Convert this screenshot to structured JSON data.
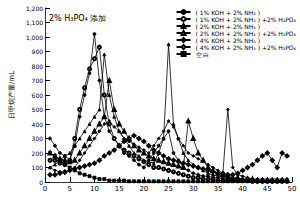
{
  "chart_data": {
    "type": "line",
    "title": "2% H₃PO₄ 添加",
    "y_label": "日甲烷产量/mL",
    "x": [
      1,
      2,
      3,
      4,
      5,
      6,
      7,
      8,
      9,
      10,
      11,
      12,
      13,
      14,
      15,
      16,
      17,
      18,
      19,
      20,
      21,
      22,
      23,
      24,
      25,
      26,
      27,
      28,
      29,
      30,
      31,
      32,
      33,
      34,
      35,
      36,
      37,
      38,
      39,
      40,
      41,
      42,
      43,
      44,
      45,
      46,
      47,
      48,
      49
    ],
    "xlim": [
      0,
      50
    ],
    "xticks": [
      0,
      5,
      10,
      15,
      20,
      25,
      30,
      35,
      40,
      45,
      50
    ],
    "ylim": [
      0,
      1200
    ],
    "yticks": [
      0,
      100,
      200,
      300,
      400,
      500,
      600,
      700,
      800,
      900,
      1000,
      1100,
      1200
    ],
    "grid": false,
    "legend": "upper right",
    "series": [
      {
        "name": "( 1% KOH + 2% NH₃ )",
        "color": "#000000",
        "marker": "circle",
        "values": [
          300,
          250,
          200,
          180,
          150,
          250,
          450,
          600,
          750,
          1020,
          700,
          450,
          350,
          300,
          250,
          200,
          180,
          150,
          120,
          100,
          150,
          200,
          250,
          300,
          350,
          200,
          150,
          100,
          80,
          60,
          50,
          40,
          40,
          30,
          30,
          20,
          20,
          20,
          10,
          10,
          10,
          10,
          10,
          10,
          5,
          5,
          5,
          5,
          5
        ]
      },
      {
        "name": "( 1% KOH + 2% NH₃ ) +2% H₃PO₄",
        "color": "#000000",
        "marker": "empty_circle",
        "values": [
          150,
          150,
          130,
          120,
          150,
          300,
          500,
          650,
          780,
          850,
          930,
          600,
          400,
          300,
          250,
          220,
          200,
          180,
          160,
          140,
          120,
          100,
          100,
          90,
          80,
          70,
          60,
          50,
          40,
          30,
          30,
          20,
          20,
          20,
          10,
          10,
          10,
          10,
          10,
          10,
          10,
          5,
          5,
          5,
          5,
          5,
          5,
          5,
          5
        ]
      },
      {
        "name": "( 2% KOH + 2% NH₃ )",
        "color": "#000000",
        "marker": "triangle",
        "values": [
          100,
          120,
          150,
          180,
          200,
          250,
          300,
          350,
          400,
          450,
          500,
          880,
          600,
          450,
          350,
          300,
          250,
          200,
          180,
          150,
          140,
          130,
          200,
          300,
          950,
          400,
          300,
          200,
          150,
          120,
          100,
          80,
          60,
          50,
          40,
          40,
          30,
          30,
          20,
          20,
          20,
          10,
          10,
          10,
          10,
          10,
          10,
          10,
          10
        ]
      },
      {
        "name": "( 2% KOH + 2% NH₃ ) +2% H₃PO₄",
        "color": "#000000",
        "marker": "empty_triangle",
        "values": [
          200,
          180,
          160,
          150,
          140,
          150,
          200,
          250,
          300,
          350,
          400,
          450,
          700,
          500,
          400,
          350,
          300,
          250,
          220,
          200,
          180,
          160,
          150,
          140,
          130,
          120,
          110,
          100,
          420,
          300,
          200,
          150,
          100,
          80,
          60,
          50,
          40,
          30,
          30,
          20,
          20,
          20,
          10,
          10,
          10,
          10,
          10,
          10,
          10
        ]
      },
      {
        "name": "( 4% KOH + 2% NH₃ )",
        "color": "#000000",
        "marker": "diamond",
        "values": [
          100,
          80,
          70,
          60,
          80,
          100,
          150,
          200,
          250,
          300,
          350,
          400,
          420,
          380,
          350,
          300,
          280,
          260,
          240,
          220,
          200,
          250,
          300,
          350,
          420,
          380,
          300,
          250,
          200,
          180,
          160,
          140,
          120,
          100,
          80,
          60,
          500,
          100,
          50,
          40,
          30,
          20,
          20,
          20,
          20,
          20,
          20,
          20,
          20
        ]
      },
      {
        "name": "( 4% KOH + 2% NH₃ ) +2% H₃PO₄",
        "color": "#000000",
        "marker": "empty_diamond",
        "values": [
          50,
          50,
          60,
          70,
          80,
          90,
          100,
          110,
          120,
          130,
          150,
          180,
          200,
          220,
          250,
          280,
          300,
          320,
          300,
          280,
          250,
          220,
          200,
          180,
          160,
          150,
          140,
          130,
          120,
          110,
          100,
          90,
          80,
          70,
          60,
          60,
          50,
          50,
          60,
          80,
          100,
          120,
          150,
          180,
          200,
          150,
          100,
          200,
          180
        ]
      },
      {
        "name": "空 白",
        "color": "#000000",
        "marker": "square",
        "values": [
          200,
          180,
          150,
          120,
          100,
          80,
          60,
          50,
          40,
          30,
          20,
          20,
          10,
          10,
          10,
          10,
          5,
          5,
          5,
          5,
          5,
          5,
          5,
          5,
          5,
          5,
          5,
          5,
          5,
          5,
          5,
          5,
          5,
          5,
          5,
          5,
          5,
          5,
          5,
          5,
          5,
          5,
          5,
          5,
          5,
          5,
          5,
          5,
          5
        ]
      }
    ]
  }
}
